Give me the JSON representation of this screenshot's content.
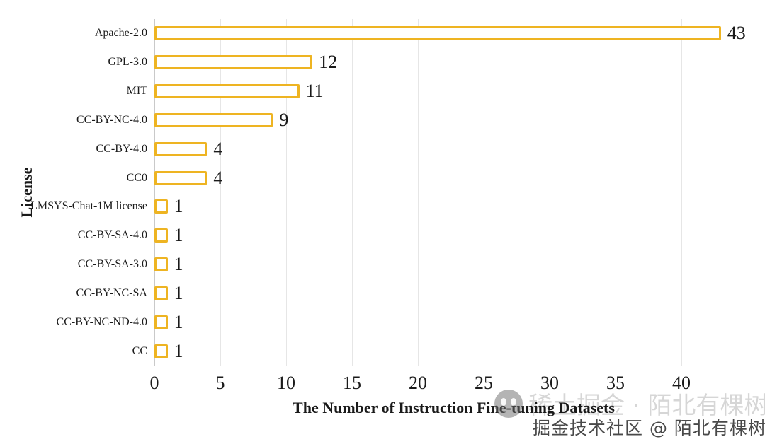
{
  "colors": {
    "bar_border": "#EEB422",
    "bar_fill": "#FFFFFF",
    "gridline": "#E6E6E6",
    "axis_line": "#C9C9C9",
    "text": "#1A1A1A",
    "watermark_dark": "#303030"
  },
  "chart_data": {
    "type": "bar",
    "orientation": "horizontal",
    "title": "",
    "xlabel": "The Number of Instruction Fine-tuning Datasets",
    "ylabel": "License",
    "categories": [
      "Apache-2.0",
      "GPL-3.0",
      "MIT",
      "CC-BY-NC-4.0",
      "CC-BY-4.0",
      "CC0",
      "LMSYS-Chat-1M license",
      "CC-BY-SA-4.0",
      "CC-BY-SA-3.0",
      "CC-BY-NC-SA",
      "CC-BY-NC-ND-4.0",
      "CC"
    ],
    "values": [
      43,
      12,
      11,
      9,
      4,
      4,
      1,
      1,
      1,
      1,
      1,
      1
    ],
    "xticks": [
      0,
      5,
      10,
      15,
      20,
      25,
      30,
      35,
      40
    ],
    "xlim": [
      0,
      45
    ],
    "grid": "vertical-only",
    "legend": "none",
    "data_labels_shown": true
  },
  "watermark": {
    "background_text": "稀土掘金 · 陌北有棵树",
    "overlay_text": "掘金技术社区 @ 陌北有棵树"
  }
}
